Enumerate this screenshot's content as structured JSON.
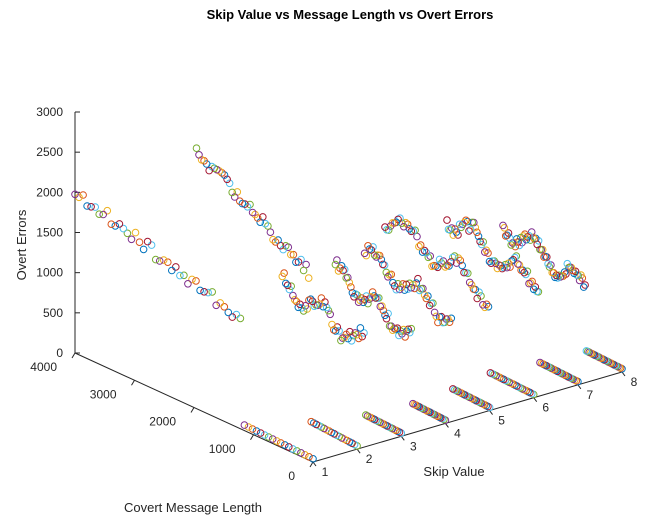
{
  "chart_data": {
    "type": "scatter",
    "subtype": "3d",
    "title": "Skip Value vs Message Length vs Overt Errors",
    "xlabel": "Skip Value",
    "ylabel": "Covert Message Length",
    "zlabel": "Overt Errors",
    "xlim": [
      1,
      8
    ],
    "ylim": [
      0,
      4000
    ],
    "zlim": [
      0,
      3000
    ],
    "x_ticks": [
      "1",
      "2",
      "3",
      "4",
      "5",
      "6",
      "7",
      "8"
    ],
    "y_ticks": [
      "0",
      "1000",
      "2000",
      "3000",
      "4000"
    ],
    "z_ticks": [
      "0",
      "500",
      "1000",
      "1500",
      "2000",
      "2500",
      "3000"
    ],
    "marker": "open-circle",
    "grid": false,
    "legend": "none",
    "colors": [
      "#0072BD",
      "#D95319",
      "#EDB120",
      "#7E2F8E",
      "#77AC30",
      "#4DBEEE",
      "#A2142F"
    ],
    "series": [
      {
        "x": 1,
        "length_range": [
          0,
          4000
        ],
        "error_peak": 2000,
        "shape": "linear"
      },
      {
        "x": 2,
        "length_range": [
          0,
          2700
        ],
        "error_peak": 2800,
        "shape": "linear"
      },
      {
        "x": 3,
        "length_range": [
          0,
          2000
        ],
        "error_peak": 1400,
        "shape": "wavy"
      },
      {
        "x": 4,
        "length_range": [
          0,
          1850
        ],
        "error_peak": 1380,
        "shape": "wavy"
      },
      {
        "x": 5,
        "length_range": [
          0,
          2100
        ],
        "error_peak": 1400,
        "shape": "wavy"
      },
      {
        "x": 6,
        "length_range": [
          0,
          2500
        ],
        "error_peak": 1550,
        "shape": "wavy"
      },
      {
        "x": 7,
        "length_range": [
          0,
          2200
        ],
        "error_peak": 1500,
        "shape": "wavy"
      },
      {
        "x": 8,
        "length_range": [
          0,
          2000
        ],
        "error_peak": 1300,
        "shape": "wavy"
      }
    ]
  }
}
